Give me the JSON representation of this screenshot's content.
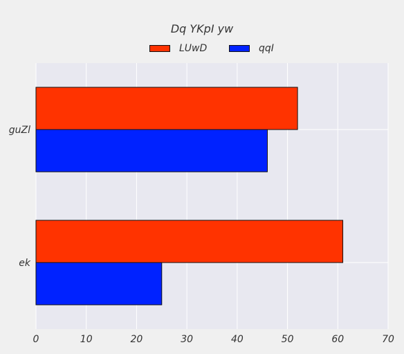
{
  "chart_data": {
    "type": "bar",
    "orientation": "horizontal",
    "title": "Dq YKpI yw",
    "categories": [
      "ek",
      "guZl"
    ],
    "series": [
      {
        "name": "LUwD",
        "color": "#ff3300",
        "values": [
          61,
          52
        ]
      },
      {
        "name": "qqI",
        "color": "#0022ff",
        "values": [
          25,
          46
        ]
      }
    ],
    "xlim": [
      0,
      70
    ],
    "x_ticks": [
      0,
      10,
      20,
      30,
      40,
      50,
      60,
      70
    ],
    "xlabel": "",
    "ylabel": "",
    "grid": true,
    "legend_position": "top-center",
    "background": "#f0f0f0",
    "plot_background": "#e8e8f0"
  }
}
